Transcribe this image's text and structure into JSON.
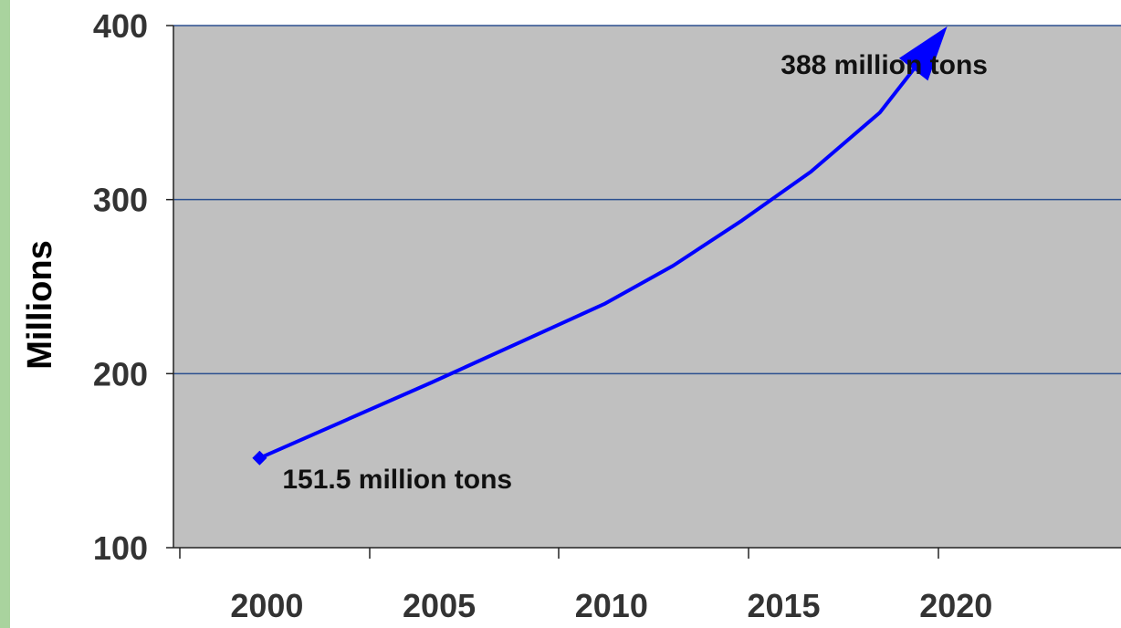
{
  "chart_data": {
    "type": "line",
    "title": "",
    "xlabel": "",
    "ylabel": "Millions",
    "ylim": [
      100,
      400
    ],
    "xlim": [
      1997.5,
      2025.0
    ],
    "y_ticks": [
      "100",
      "200",
      "300",
      "400"
    ],
    "x_ticks": [
      "2000",
      "2005",
      "2010",
      "2015",
      "2020"
    ],
    "grid": true,
    "series": [
      {
        "x": [
          2000,
          2005,
          2010,
          2012,
          2014,
          2016,
          2018,
          2019.5
        ],
        "y": [
          151.5,
          195,
          240,
          262,
          288,
          316,
          350,
          388
        ],
        "color": "#0000ff"
      }
    ],
    "annotations": [
      {
        "text": "151.5 million tons",
        "x": 2000,
        "y": 151.5
      },
      {
        "text": "388 million tons",
        "x": 2019.5,
        "y": 388
      }
    ],
    "colors": {
      "plot_background": "#c0c0c0",
      "gridline": "#2b4f8f",
      "series": "#0000ff",
      "left_strip": "#a9d39e"
    }
  }
}
